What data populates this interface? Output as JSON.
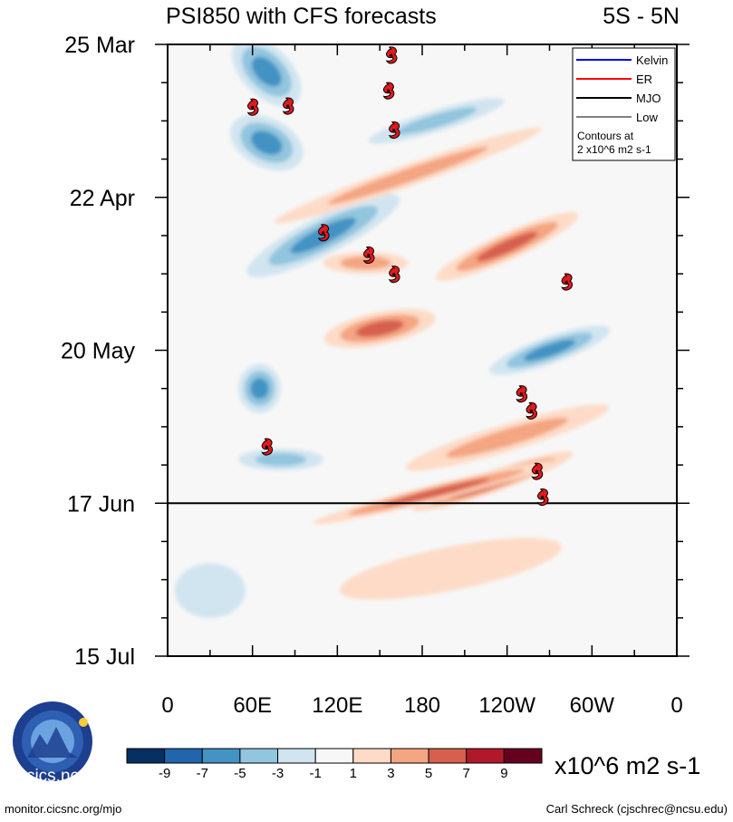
{
  "chart_data": {
    "type": "heatmap",
    "title": "PSI850 with CFS forecasts",
    "region": "5S - 5N",
    "xlabel": "",
    "ylabel": "",
    "x_tick_labels": [
      {
        "lon": 0,
        "label": "0"
      },
      {
        "lon": 60,
        "label": "60E"
      },
      {
        "lon": 120,
        "label": "120E"
      },
      {
        "lon": 180,
        "label": "180"
      },
      {
        "lon": 240,
        "label": "120W"
      },
      {
        "lon": 300,
        "label": "60W"
      },
      {
        "lon": 360,
        "label": "0"
      }
    ],
    "x_range": [
      0,
      360
    ],
    "y_tick_labels": [
      {
        "day": 0,
        "label": "25 Mar"
      },
      {
        "day": 28,
        "label": "22 Apr"
      },
      {
        "day": 56,
        "label": "20 May"
      },
      {
        "day": 84,
        "label": "17 Jun"
      },
      {
        "day": 112,
        "label": "15 Jul"
      }
    ],
    "y_range_days": [
      0,
      112
    ],
    "forecast_start_day": 84,
    "legend": {
      "placement": "top-right",
      "entries": [
        {
          "name": "Kelvin",
          "color": "#0000ff"
        },
        {
          "name": "ER",
          "color": "#ff0000"
        },
        {
          "name": "MJO",
          "color": "#000000"
        },
        {
          "name": "Low",
          "color": "#808080"
        }
      ],
      "note_line1": "Contours at",
      "note_line2": "2 x10^6 m2 s-1"
    },
    "colorbar": {
      "unit_label": "x10^6 m2 s-1",
      "tick_labels": [
        "-9",
        "-7",
        "-5",
        "-3",
        "-1",
        "1",
        "3",
        "5",
        "7",
        "9"
      ],
      "colors": [
        "#053061",
        "#2166ac",
        "#4393c3",
        "#92c5de",
        "#d1e5f0",
        "#f7f7f7",
        "#fddbc7",
        "#f4a582",
        "#d6604d",
        "#b2182b",
        "#67001f"
      ]
    },
    "tropical_cyclones": [
      {
        "lon": 158,
        "day": 2.0
      },
      {
        "lon": 156,
        "day": 8.5
      },
      {
        "lon": 60,
        "day": 11.5
      },
      {
        "lon": 85,
        "day": 11.3
      },
      {
        "lon": 160,
        "day": 15.7
      },
      {
        "lon": 110,
        "day": 34.5
      },
      {
        "lon": 142,
        "day": 38.6
      },
      {
        "lon": 160,
        "day": 42.1
      },
      {
        "lon": 282,
        "day": 43.5
      },
      {
        "lon": 250,
        "day": 64.0
      },
      {
        "lon": 257,
        "day": 67.1
      },
      {
        "lon": 70,
        "day": 73.7
      },
      {
        "lon": 261,
        "day": 78.2
      },
      {
        "lon": 265,
        "day": 82.9
      }
    ],
    "field_features": [
      {
        "lon": 70,
        "day": 5,
        "value": -4.5,
        "width_lon": 60,
        "len_day": 9,
        "tilt": -1
      },
      {
        "lon": 70,
        "day": 18,
        "value": -5.5,
        "width_lon": 55,
        "len_day": 9,
        "tilt": -0.5
      },
      {
        "lon": 110,
        "day": 35,
        "value": -5,
        "width_lon": 120,
        "len_day": 7,
        "tilt": 0.5
      },
      {
        "lon": 140,
        "day": 40,
        "value": 3,
        "width_lon": 60,
        "len_day": 4,
        "tilt": 0
      },
      {
        "lon": 170,
        "day": 24,
        "value": 3,
        "width_lon": 200,
        "len_day": 4,
        "tilt": 0.35
      },
      {
        "lon": 240,
        "day": 37,
        "value": 6,
        "width_lon": 110,
        "len_day": 5,
        "tilt": 0.45
      },
      {
        "lon": 150,
        "day": 52,
        "value": 5,
        "width_lon": 80,
        "len_day": 6,
        "tilt": 0.2
      },
      {
        "lon": 270,
        "day": 56,
        "value": -5,
        "width_lon": 90,
        "len_day": 5,
        "tilt": 0.35
      },
      {
        "lon": 65,
        "day": 63,
        "value": -5.5,
        "width_lon": 30,
        "len_day": 9,
        "tilt": 0
      },
      {
        "lon": 240,
        "day": 72,
        "value": 3.5,
        "width_lon": 150,
        "len_day": 5,
        "tilt": 0.3
      },
      {
        "lon": 230,
        "day": 80,
        "value": 7,
        "width_lon": 120,
        "len_day": 4,
        "tilt": 0.35
      },
      {
        "lon": 190,
        "day": 82,
        "value": 4.5,
        "width_lon": 180,
        "len_day": 3,
        "tilt": 0.25
      },
      {
        "lon": 80,
        "day": 76,
        "value": -3.5,
        "width_lon": 60,
        "len_day": 4,
        "tilt": 0
      },
      {
        "lon": 190,
        "day": 14,
        "value": -3,
        "width_lon": 100,
        "len_day": 4,
        "tilt": 0.3
      },
      {
        "lon": 200,
        "day": 96,
        "value": 2,
        "width_lon": 160,
        "len_day": 8,
        "tilt": 0.2
      },
      {
        "lon": 30,
        "day": 100,
        "value": -2,
        "width_lon": 50,
        "len_day": 10,
        "tilt": 0
      }
    ]
  },
  "footer": {
    "logo_text": "cics.nc",
    "logo_ring_text": "Cooperative Institute for Climate and Satellites",
    "left_credit": "monitor.cicsnc.org/mjo",
    "right_credit": "Carl Schreck (cjschrec@ncsu.edu)"
  }
}
